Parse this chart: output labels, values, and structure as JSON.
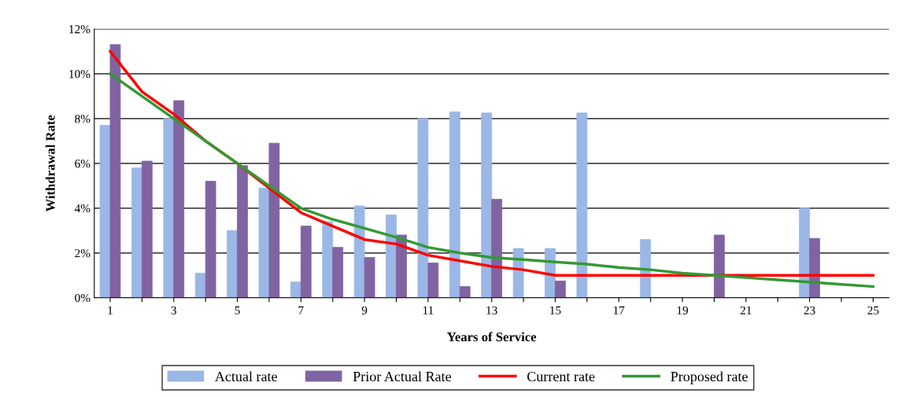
{
  "chart_data": {
    "type": "bar",
    "xlabel": "Years of Service",
    "ylabel": "Withdrawal Rate",
    "categories": [
      "1",
      null,
      "3",
      null,
      "5",
      null,
      "7",
      null,
      "9",
      null,
      "11",
      null,
      "13",
      null,
      "15",
      null,
      "17",
      null,
      "19",
      null,
      "21",
      null,
      "23",
      null,
      "25"
    ],
    "series": [
      {
        "name": "Actual rate",
        "color": "#9bb7e6",
        "values": [
          7.7,
          5.8,
          8.0,
          1.1,
          3.0,
          4.9,
          0.7,
          3.4,
          4.1,
          3.7,
          8.0,
          8.3,
          8.25,
          2.2,
          2.2,
          8.25,
          null,
          2.6,
          null,
          null,
          null,
          null,
          4.0,
          null,
          null
        ]
      },
      {
        "name": "Prior Actual Rate",
        "color": "#8064a2",
        "values": [
          11.3,
          6.1,
          8.8,
          5.2,
          5.9,
          6.9,
          3.2,
          2.25,
          1.8,
          2.8,
          1.55,
          0.5,
          4.4,
          null,
          0.75,
          null,
          null,
          null,
          null,
          2.8,
          null,
          null,
          2.65,
          null,
          null
        ]
      },
      {
        "name": "Current rate",
        "type": "line",
        "color": "#ff0000",
        "values": [
          11.0,
          9.2,
          8.2,
          7.0,
          6.0,
          4.9,
          3.8,
          3.2,
          2.6,
          2.4,
          1.9,
          1.65,
          1.4,
          1.25,
          1.0,
          1.0,
          1.0,
          1.0,
          1.0,
          1.0,
          1.0,
          1.0,
          1.0,
          1.0,
          1.0
        ]
      },
      {
        "name": "Proposed rate",
        "type": "line",
        "color": "#339933",
        "values": [
          10.0,
          9.0,
          8.0,
          7.0,
          6.0,
          5.0,
          4.0,
          3.5,
          3.1,
          2.7,
          2.25,
          2.0,
          1.8,
          1.7,
          1.6,
          1.5,
          1.35,
          1.25,
          1.1,
          1.0,
          0.9,
          0.8,
          0.7,
          0.6,
          0.5
        ]
      }
    ],
    "ylim": [
      0,
      12
    ],
    "yticks": [
      {
        "value": 0,
        "label": "0%"
      },
      {
        "value": 2,
        "label": "2%"
      },
      {
        "value": 4,
        "label": "4%"
      },
      {
        "value": 6,
        "label": "6%"
      },
      {
        "value": 8,
        "label": "8%"
      },
      {
        "value": 10,
        "label": "10%"
      },
      {
        "value": 12,
        "label": "12%"
      }
    ],
    "grid": "y",
    "legend": "bottom",
    "marker": "none",
    "line_style": "solid"
  }
}
